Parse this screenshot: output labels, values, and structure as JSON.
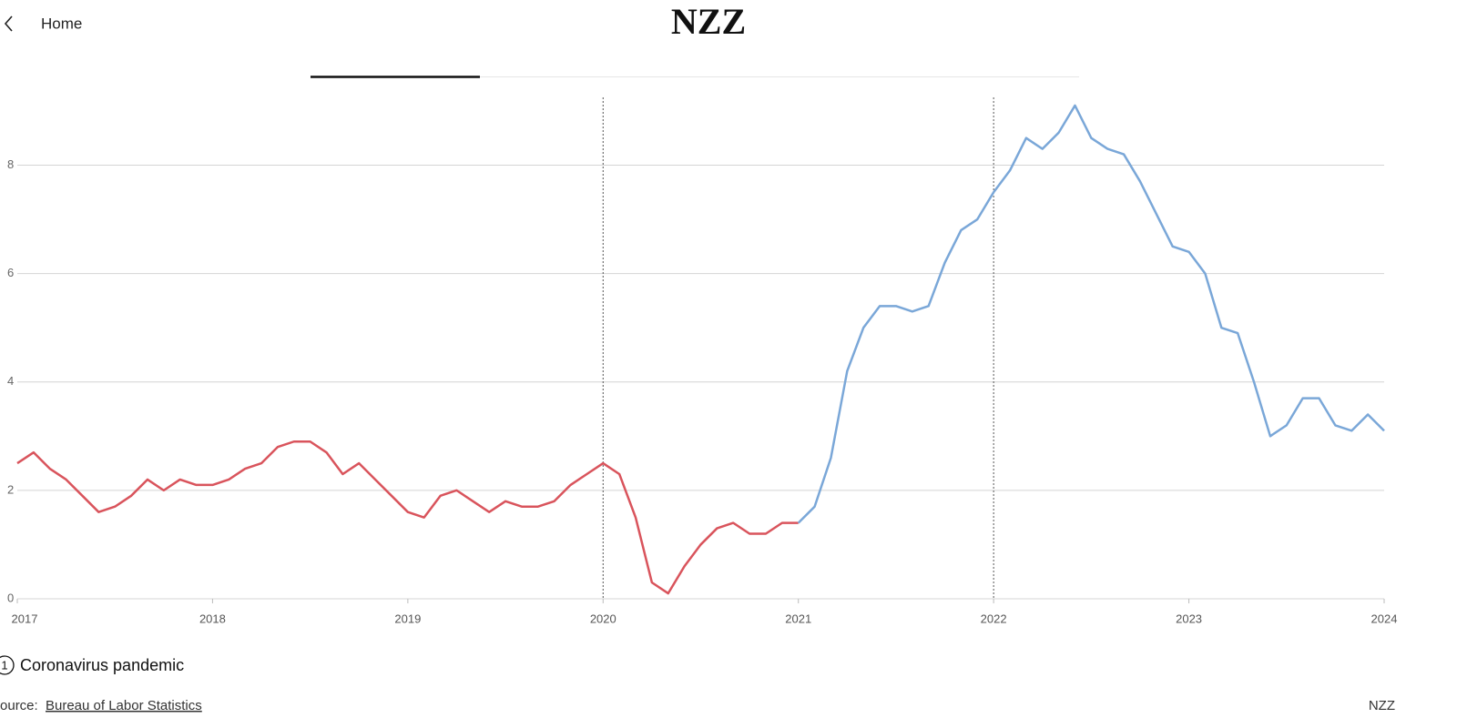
{
  "header": {
    "back": "Home",
    "logo": "NZZ"
  },
  "chart_data": {
    "type": "line",
    "categories": [
      "2017",
      null,
      null,
      null,
      null,
      null,
      null,
      null,
      null,
      null,
      null,
      null,
      "2018",
      null,
      null,
      null,
      null,
      null,
      null,
      null,
      null,
      null,
      null,
      null,
      "2019",
      null,
      null,
      null,
      null,
      null,
      null,
      null,
      null,
      null,
      null,
      null,
      "2020",
      null,
      null,
      null,
      null,
      null,
      null,
      null,
      null,
      null,
      null,
      null,
      "2021",
      null,
      null,
      null,
      null,
      null,
      null,
      null,
      null,
      null,
      null,
      null,
      "2022",
      null,
      null,
      null,
      null,
      null,
      null,
      null,
      null,
      null,
      null,
      null,
      "2023",
      null,
      null,
      null,
      null,
      null,
      null,
      null,
      null,
      null,
      null,
      null,
      "2024"
    ],
    "series": [
      {
        "color": "#d9545c",
        "values": [
          2.5,
          2.7,
          2.4,
          2.2,
          1.9,
          1.6,
          1.7,
          1.9,
          2.2,
          2.0,
          2.2,
          2.1,
          2.1,
          2.2,
          2.4,
          2.5,
          2.8,
          2.9,
          2.9,
          2.7,
          2.3,
          2.5,
          2.2,
          1.9,
          1.6,
          1.5,
          1.9,
          2.0,
          1.8,
          1.6,
          1.8,
          1.7,
          1.7,
          1.8,
          2.1,
          2.3,
          2.5,
          2.3,
          1.5,
          0.3,
          0.1,
          0.6,
          1.0,
          1.3,
          1.4,
          1.2,
          1.2,
          1.4,
          1.4,
          null,
          null,
          null,
          null,
          null,
          null,
          null,
          null,
          null,
          null,
          null,
          null,
          null,
          null,
          null,
          null,
          null,
          null,
          null,
          null,
          null,
          null,
          null,
          null,
          null,
          null,
          null,
          null,
          null,
          null,
          null,
          null,
          null,
          null,
          null,
          null
        ]
      },
      {
        "color": "#7aa7d8",
        "values": [
          null,
          null,
          null,
          null,
          null,
          null,
          null,
          null,
          null,
          null,
          null,
          null,
          null,
          null,
          null,
          null,
          null,
          null,
          null,
          null,
          null,
          null,
          null,
          null,
          null,
          null,
          null,
          null,
          null,
          null,
          null,
          null,
          null,
          null,
          null,
          null,
          null,
          null,
          null,
          null,
          null,
          null,
          null,
          null,
          null,
          null,
          null,
          null,
          1.4,
          1.7,
          2.6,
          4.2,
          5.0,
          5.4,
          5.4,
          5.3,
          5.4,
          6.2,
          6.8,
          7.0,
          7.5,
          7.9,
          8.5,
          8.3,
          8.6,
          9.1,
          8.5,
          8.3,
          8.2,
          7.7,
          7.1,
          6.5,
          6.4,
          6.0,
          5.0,
          4.9,
          4.0,
          3.0,
          3.2,
          3.7,
          3.7,
          3.2,
          3.1,
          3.4,
          3.1
        ]
      }
    ],
    "ylim": [
      0,
      9.25
    ],
    "yticks": [
      0,
      2,
      4,
      6,
      8
    ],
    "grid": true,
    "vlines": [
      "2020",
      "2022"
    ],
    "footnote": {
      "number": "1",
      "text": "Coronavirus pandemic"
    }
  },
  "footer": {
    "source_prefix": "Source:",
    "source": "Bureau of Labor Statistics",
    "brand": "NZZ"
  }
}
